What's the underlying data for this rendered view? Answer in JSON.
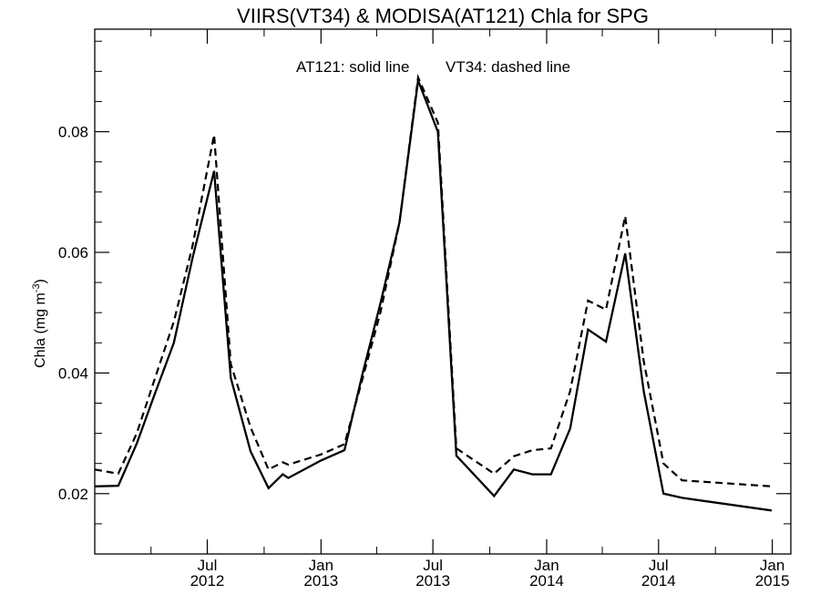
{
  "chart_data": {
    "type": "line",
    "title": "VIIRS(VT34) & MODISA(AT121)  Chla for SPG",
    "ylabel": "Chla (mg m",
    "ylabel_sup": "-3",
    "ylabel_close": ")",
    "annotation_solid": "AT121: solid line",
    "annotation_dashed": "VT34: dashed line",
    "ylim": [
      0.01,
      0.097
    ],
    "yticks": [
      {
        "value": 0.02,
        "label": "0.02"
      },
      {
        "value": 0.04,
        "label": "0.04"
      },
      {
        "value": 0.06,
        "label": "0.06"
      },
      {
        "value": 0.08,
        "label": "0.08"
      }
    ],
    "xlim": [
      "2012-01-01",
      "2015-01-31"
    ],
    "xticks": [
      {
        "date": "2012-07-01",
        "label1": "Jul",
        "label2": "2012"
      },
      {
        "date": "2013-01-01",
        "label1": "Jan",
        "label2": "2013"
      },
      {
        "date": "2013-07-01",
        "label1": "Jul",
        "label2": "2013"
      },
      {
        "date": "2014-01-01",
        "label1": "Jan",
        "label2": "2014"
      },
      {
        "date": "2014-07-01",
        "label1": "Jul",
        "label2": "2014"
      },
      {
        "date": "2015-01-01",
        "label1": "Jan",
        "label2": "2015"
      }
    ],
    "grid": false,
    "series": [
      {
        "name": "AT121",
        "style": "solid",
        "color": "#000000",
        "points": [
          [
            "2012-01-01",
            0.0212
          ],
          [
            "2012-02-08",
            0.0213
          ],
          [
            "2012-03-09",
            0.0283
          ],
          [
            "2012-04-07",
            0.0365
          ],
          [
            "2012-05-08",
            0.045
          ],
          [
            "2012-06-07",
            0.059
          ],
          [
            "2012-07-12",
            0.0735
          ],
          [
            "2012-08-08",
            0.0392
          ],
          [
            "2012-09-09",
            0.027
          ],
          [
            "2012-10-08",
            0.0209
          ],
          [
            "2012-10-31",
            0.0232
          ],
          [
            "2012-11-09",
            0.0226
          ],
          [
            "2013-01-01",
            0.0255
          ],
          [
            "2013-02-08",
            0.0272
          ],
          [
            "2013-03-09",
            0.0398
          ],
          [
            "2013-04-07",
            0.0515
          ],
          [
            "2013-05-08",
            0.065
          ],
          [
            "2013-06-07",
            0.0885
          ],
          [
            "2013-07-09",
            0.08
          ],
          [
            "2013-08-08",
            0.0263
          ],
          [
            "2013-10-08",
            0.0196
          ],
          [
            "2013-11-09",
            0.024
          ],
          [
            "2013-12-09",
            0.0232
          ],
          [
            "2014-01-08",
            0.0232
          ],
          [
            "2014-02-08",
            0.0308
          ],
          [
            "2014-03-09",
            0.0472
          ],
          [
            "2014-04-07",
            0.0452
          ],
          [
            "2014-05-08",
            0.0598
          ],
          [
            "2014-06-07",
            0.037
          ],
          [
            "2014-07-09",
            0.02
          ],
          [
            "2014-08-08",
            0.0193
          ],
          [
            "2014-12-31",
            0.0172
          ]
        ]
      },
      {
        "name": "VT34",
        "style": "dashed",
        "color": "#000000",
        "points": [
          [
            "2012-01-01",
            0.024
          ],
          [
            "2012-02-08",
            0.0233
          ],
          [
            "2012-03-09",
            0.03
          ],
          [
            "2012-04-07",
            0.039
          ],
          [
            "2012-05-08",
            0.0485
          ],
          [
            "2012-06-07",
            0.061
          ],
          [
            "2012-07-12",
            0.0795
          ],
          [
            "2012-08-08",
            0.0415
          ],
          [
            "2012-09-09",
            0.031
          ],
          [
            "2012-10-08",
            0.024
          ],
          [
            "2012-10-31",
            0.0252
          ],
          [
            "2012-11-09",
            0.0248
          ],
          [
            "2013-01-01",
            0.0265
          ],
          [
            "2013-02-08",
            0.0282
          ],
          [
            "2013-03-09",
            0.039
          ],
          [
            "2013-04-07",
            0.05
          ],
          [
            "2013-05-08",
            0.065
          ],
          [
            "2013-06-07",
            0.089
          ],
          [
            "2013-07-09",
            0.0815
          ],
          [
            "2013-08-08",
            0.0275
          ],
          [
            "2013-10-08",
            0.0233
          ],
          [
            "2013-11-09",
            0.0262
          ],
          [
            "2013-12-09",
            0.0272
          ],
          [
            "2014-01-08",
            0.0275
          ],
          [
            "2014-02-08",
            0.037
          ],
          [
            "2014-03-09",
            0.052
          ],
          [
            "2014-04-07",
            0.0505
          ],
          [
            "2014-05-08",
            0.066
          ],
          [
            "2014-06-07",
            0.042
          ],
          [
            "2014-07-09",
            0.025
          ],
          [
            "2014-08-08",
            0.0222
          ],
          [
            "2014-12-31",
            0.0212
          ]
        ]
      }
    ]
  }
}
